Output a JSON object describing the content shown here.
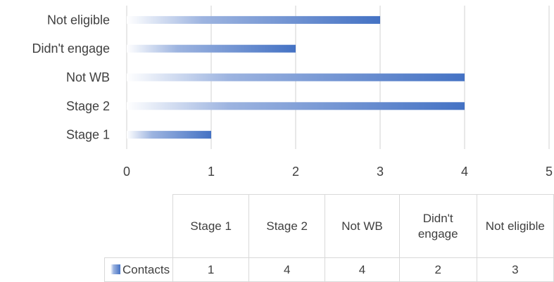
{
  "chart_data": {
    "type": "bar",
    "orientation": "horizontal",
    "categories": [
      "Stage 1",
      "Stage 2",
      "Not WB",
      "Didn't engage",
      "Not eligible"
    ],
    "series": [
      {
        "name": "Contacts",
        "values": [
          1,
          4,
          4,
          2,
          3
        ]
      }
    ],
    "xlim": [
      0,
      5
    ],
    "x_ticks": [
      "0",
      "1",
      "2",
      "3",
      "4",
      "5"
    ],
    "grid": true,
    "legend": "data table below chart",
    "bar_color": "#4472c4",
    "data_table": {
      "headers": [
        "Stage 1",
        "Stage 2",
        "Not WB",
        "Didn't\nengage",
        "Not eligible"
      ],
      "series_label": "Contacts",
      "values": [
        "1",
        "4",
        "4",
        "2",
        "3"
      ]
    }
  }
}
